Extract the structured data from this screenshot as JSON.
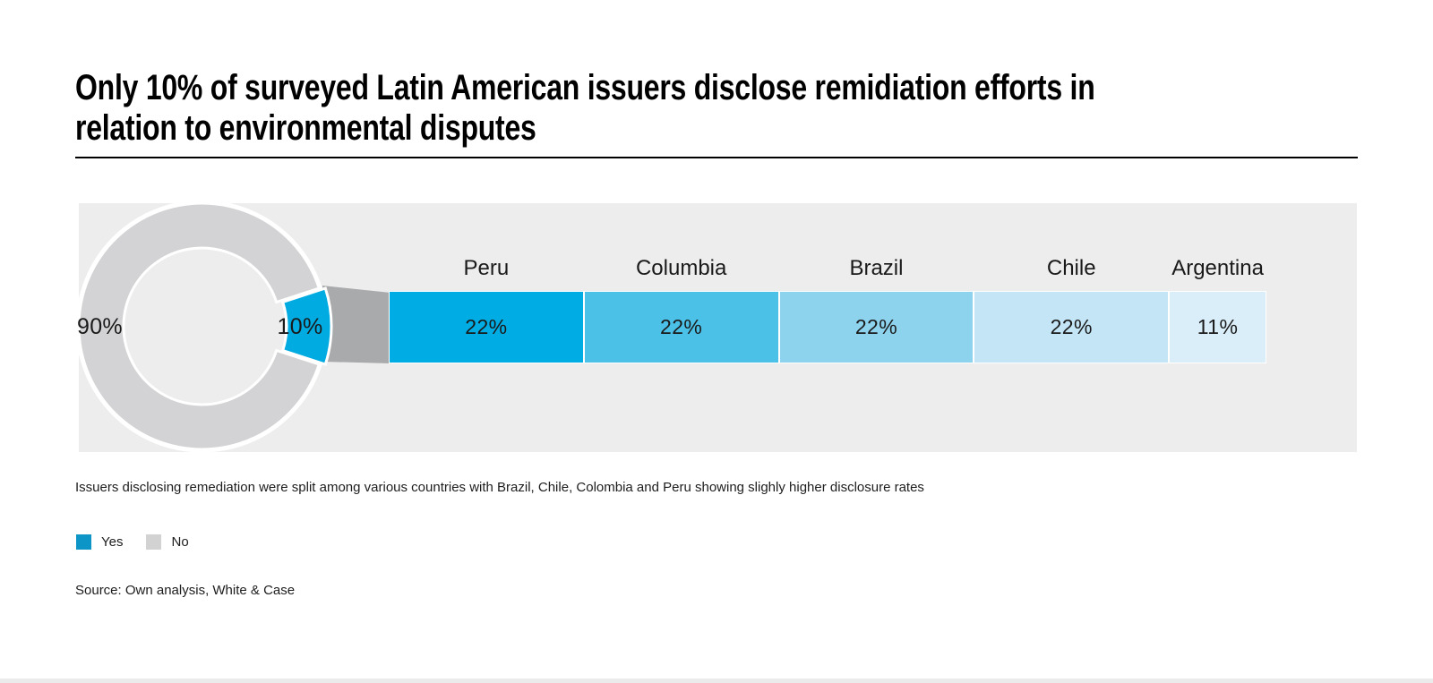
{
  "title": {
    "line1": "Only 10% of surveyed Latin American issuers disclose remidiation efforts in",
    "line2": "relation to environmental disputes"
  },
  "colors": {
    "panel_bg": "#ededee",
    "donut_no": "#d3d3d5",
    "donut_yes": "#00abe2",
    "connector": "#a9aaac",
    "legend_yes": "#0e95c7",
    "legend_no": "#d2d2d3"
  },
  "donut": {
    "no_label": "90%",
    "yes_label": "10%"
  },
  "bar": {
    "segments": [
      {
        "country": "Peru",
        "label": "22%",
        "value": 22,
        "color": "#00ace4"
      },
      {
        "country": "Columbia",
        "label": "22%",
        "value": 22,
        "color": "#4cc1e8"
      },
      {
        "country": "Brazil",
        "label": "22%",
        "value": 22,
        "color": "#8ed3ee"
      },
      {
        "country": "Chile",
        "label": "22%",
        "value": 22,
        "color": "#c3e5f6"
      },
      {
        "country": "Argentina",
        "label": "11%",
        "value": 11,
        "color": "#daeefa"
      }
    ]
  },
  "caption": "Issuers disclosing remediation were split among various countries with Brazil, Chile, Colombia and Peru showing slighly higher disclosure rates",
  "legend": {
    "items": [
      {
        "label": "Yes",
        "color": "#0e95c7"
      },
      {
        "label": "No",
        "color": "#d2d2d3"
      }
    ]
  },
  "source": "Source: Own analysis, White & Case",
  "chart_data": [
    {
      "type": "pie",
      "subtype": "donut",
      "title": "Only 10% of surveyed Latin American issuers disclose remidiation efforts in relation to environmental disputes",
      "categories": [
        "Yes",
        "No"
      ],
      "values": [
        10,
        90
      ],
      "unit": "%",
      "labels": [
        "10%",
        "90%"
      ],
      "colors": [
        "#00abe2",
        "#d3d3d5"
      ],
      "legend_position": "bottom-left"
    },
    {
      "type": "bar",
      "subtype": "horizontal-stacked",
      "title": "Breakdown of disclosing issuers by country",
      "categories": [
        "Peru",
        "Columbia",
        "Brazil",
        "Chile",
        "Argentina"
      ],
      "values": [
        22,
        22,
        22,
        22,
        11
      ],
      "unit": "%",
      "colors": [
        "#00ace4",
        "#4cc1e8",
        "#8ed3ee",
        "#c3e5f6",
        "#daeefa"
      ],
      "data_labels": [
        "22%",
        "22%",
        "22%",
        "22%",
        "11%"
      ],
      "note": "Issuers disclosing remediation were split among various countries with Brazil, Chile, Colombia and Peru showing slighly higher disclosure rates"
    }
  ]
}
